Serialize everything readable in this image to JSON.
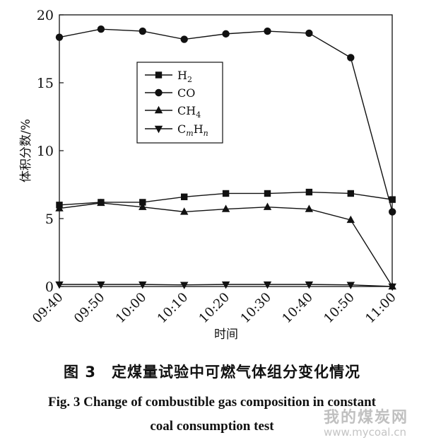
{
  "chart_data": {
    "type": "line",
    "title": "",
    "xlabel": "时间",
    "ylabel": "体积分数/%",
    "ylim": [
      0,
      20
    ],
    "yticks": [
      "0",
      "5",
      "10",
      "15",
      "20"
    ],
    "categories": [
      "09:40",
      "09:50",
      "10:00",
      "10:10",
      "10:20",
      "10:30",
      "10:40",
      "10:50",
      "11:00"
    ],
    "grid": false,
    "legend_position": "top-left",
    "series": [
      {
        "name": "H2",
        "label": "H",
        "sub": "2",
        "marker": "square",
        "values": [
          6.0,
          6.2,
          6.2,
          6.6,
          6.85,
          6.85,
          6.95,
          6.85,
          6.4
        ]
      },
      {
        "name": "CO",
        "label": "CO",
        "sub": "",
        "marker": "circle",
        "values": [
          18.35,
          18.95,
          18.8,
          18.2,
          18.6,
          18.8,
          18.65,
          16.85,
          5.5
        ]
      },
      {
        "name": "CH4",
        "label": "CH",
        "sub": "4",
        "marker": "triangle-up",
        "values": [
          5.75,
          6.15,
          5.85,
          5.5,
          5.7,
          5.85,
          5.7,
          4.9,
          0.0
        ]
      },
      {
        "name": "CmHn",
        "label": "C",
        "sub": "m",
        "label2": "H",
        "sub2": "n",
        "marker": "triangle-down",
        "values": [
          0.15,
          0.15,
          0.15,
          0.12,
          0.15,
          0.15,
          0.15,
          0.12,
          0.0
        ]
      }
    ]
  },
  "caption": {
    "cn": "图 3　定煤量试验中可燃气体组分变化情况",
    "en_line1": "Fig. 3    Change of combustible gas composition in constant",
    "en_line2": "coal consumption test"
  },
  "watermark": {
    "text_cn": "我的煤炭网",
    "url": "www.mycoal.cn"
  }
}
